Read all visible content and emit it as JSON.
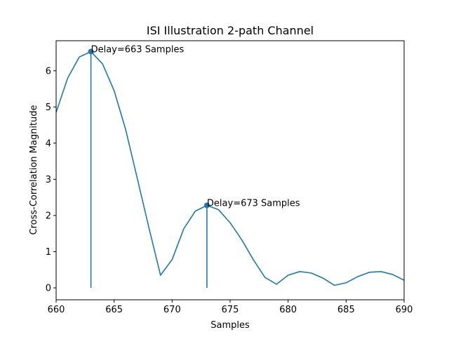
{
  "chart_data": {
    "type": "line",
    "title": "ISI Illustration 2-path Channel",
    "xlabel": "Samples",
    "ylabel": "Cross-Correlation Magnitude",
    "xlim": [
      660,
      690
    ],
    "ylim": [
      -0.33,
      6.83
    ],
    "grid": false,
    "x_ticks": [
      660,
      665,
      670,
      675,
      680,
      685,
      690
    ],
    "y_ticks": [
      0,
      1,
      2,
      3,
      4,
      5,
      6
    ],
    "series": [
      {
        "color": "#1f77b4",
        "x": [
          660,
          661,
          662,
          663,
          664,
          665,
          666,
          667,
          668,
          669,
          670,
          671,
          672,
          673,
          674,
          675,
          676,
          677,
          678,
          679,
          680,
          681,
          682,
          683,
          684,
          685,
          686,
          687,
          688,
          689,
          690
        ],
        "y": [
          4.85,
          5.8,
          6.38,
          6.53,
          6.19,
          5.45,
          4.37,
          3.02,
          1.66,
          0.35,
          0.78,
          1.63,
          2.12,
          2.28,
          2.16,
          1.8,
          1.33,
          0.78,
          0.29,
          0.1,
          0.35,
          0.45,
          0.41,
          0.27,
          0.07,
          0.14,
          0.31,
          0.43,
          0.45,
          0.37,
          0.21
        ]
      }
    ],
    "stems": [
      {
        "x": 663,
        "y": 6.53,
        "color": "#1f77b4"
      },
      {
        "x": 673,
        "y": 2.28,
        "color": "#1f77b4"
      }
    ],
    "annotations": [
      {
        "x": 663,
        "y": 6.53,
        "text": "Delay=663 Samples"
      },
      {
        "x": 673,
        "y": 2.28,
        "text": "Delay=673 Samples"
      }
    ]
  }
}
